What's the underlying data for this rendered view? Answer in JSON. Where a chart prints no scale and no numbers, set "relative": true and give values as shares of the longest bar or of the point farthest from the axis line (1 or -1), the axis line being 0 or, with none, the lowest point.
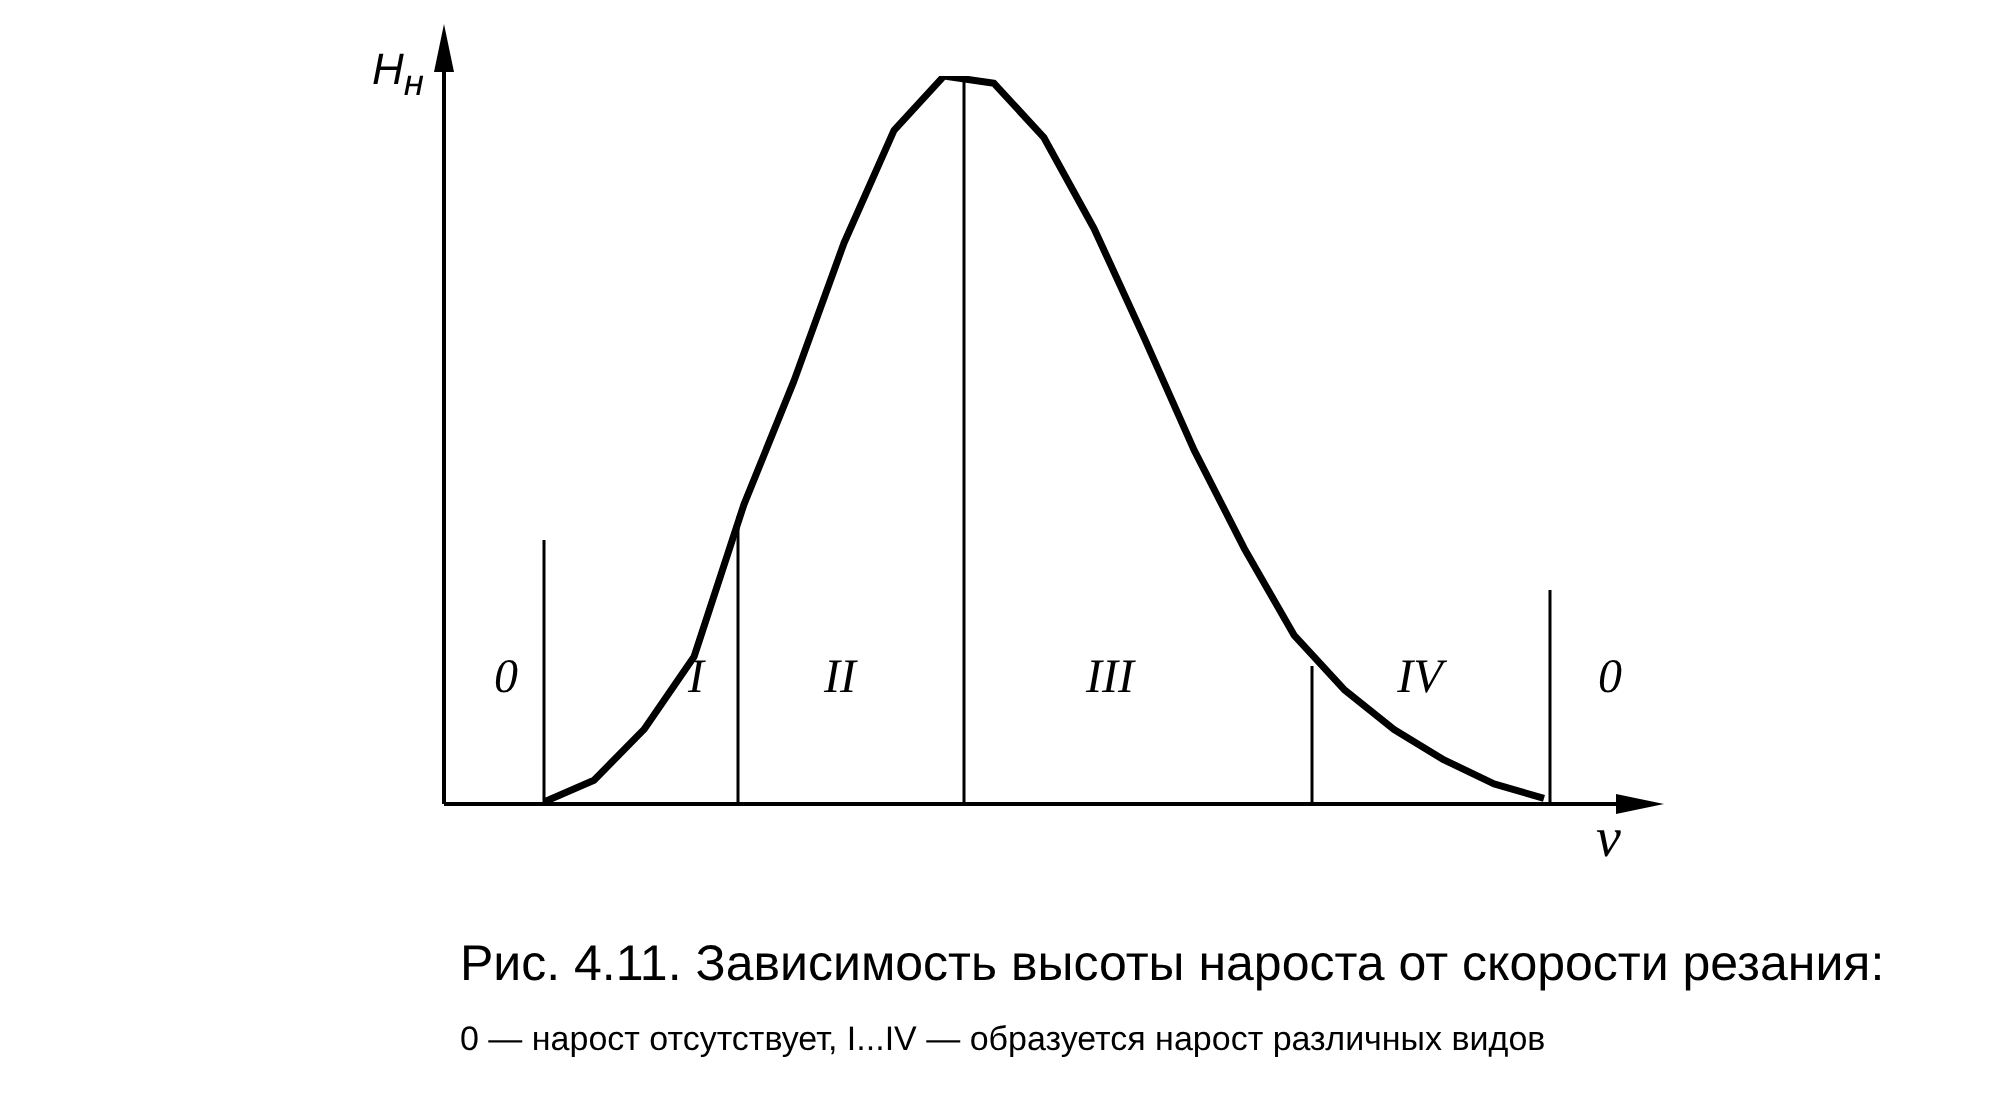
{
  "chart_data": {
    "type": "line",
    "relative": true,
    "title": "Рис. 4.11. Зависимость высоты нароста от скорости резания:",
    "subtitle": "0 — нарост отсутствует, I...IV — образуется нарост различных видов",
    "xlabel": "v",
    "ylabel": "H$_{н}$",
    "categories": [
      null,
      null,
      null,
      null,
      null,
      null,
      null,
      null,
      null,
      null,
      null,
      null,
      null,
      null,
      null,
      null,
      null,
      null,
      null,
      null,
      null
    ],
    "series": [
      {
        "color": "#000000",
        "values": [
          0,
          0.03,
          0.1,
          0.2,
          0.41,
          0.58,
          0.77,
          0.925,
          1,
          0.99,
          0.915,
          0.79,
          0.64,
          0.485,
          0.35,
          0.23,
          0.155,
          0.1,
          0.058,
          0.025,
          0.005
        ]
      }
    ],
    "annotations": [
      "0",
      "I",
      "II",
      "III",
      "IV",
      "0"
    ],
    "legend": false,
    "grid": false,
    "marker": "none",
    "line_style": "solid"
  }
}
